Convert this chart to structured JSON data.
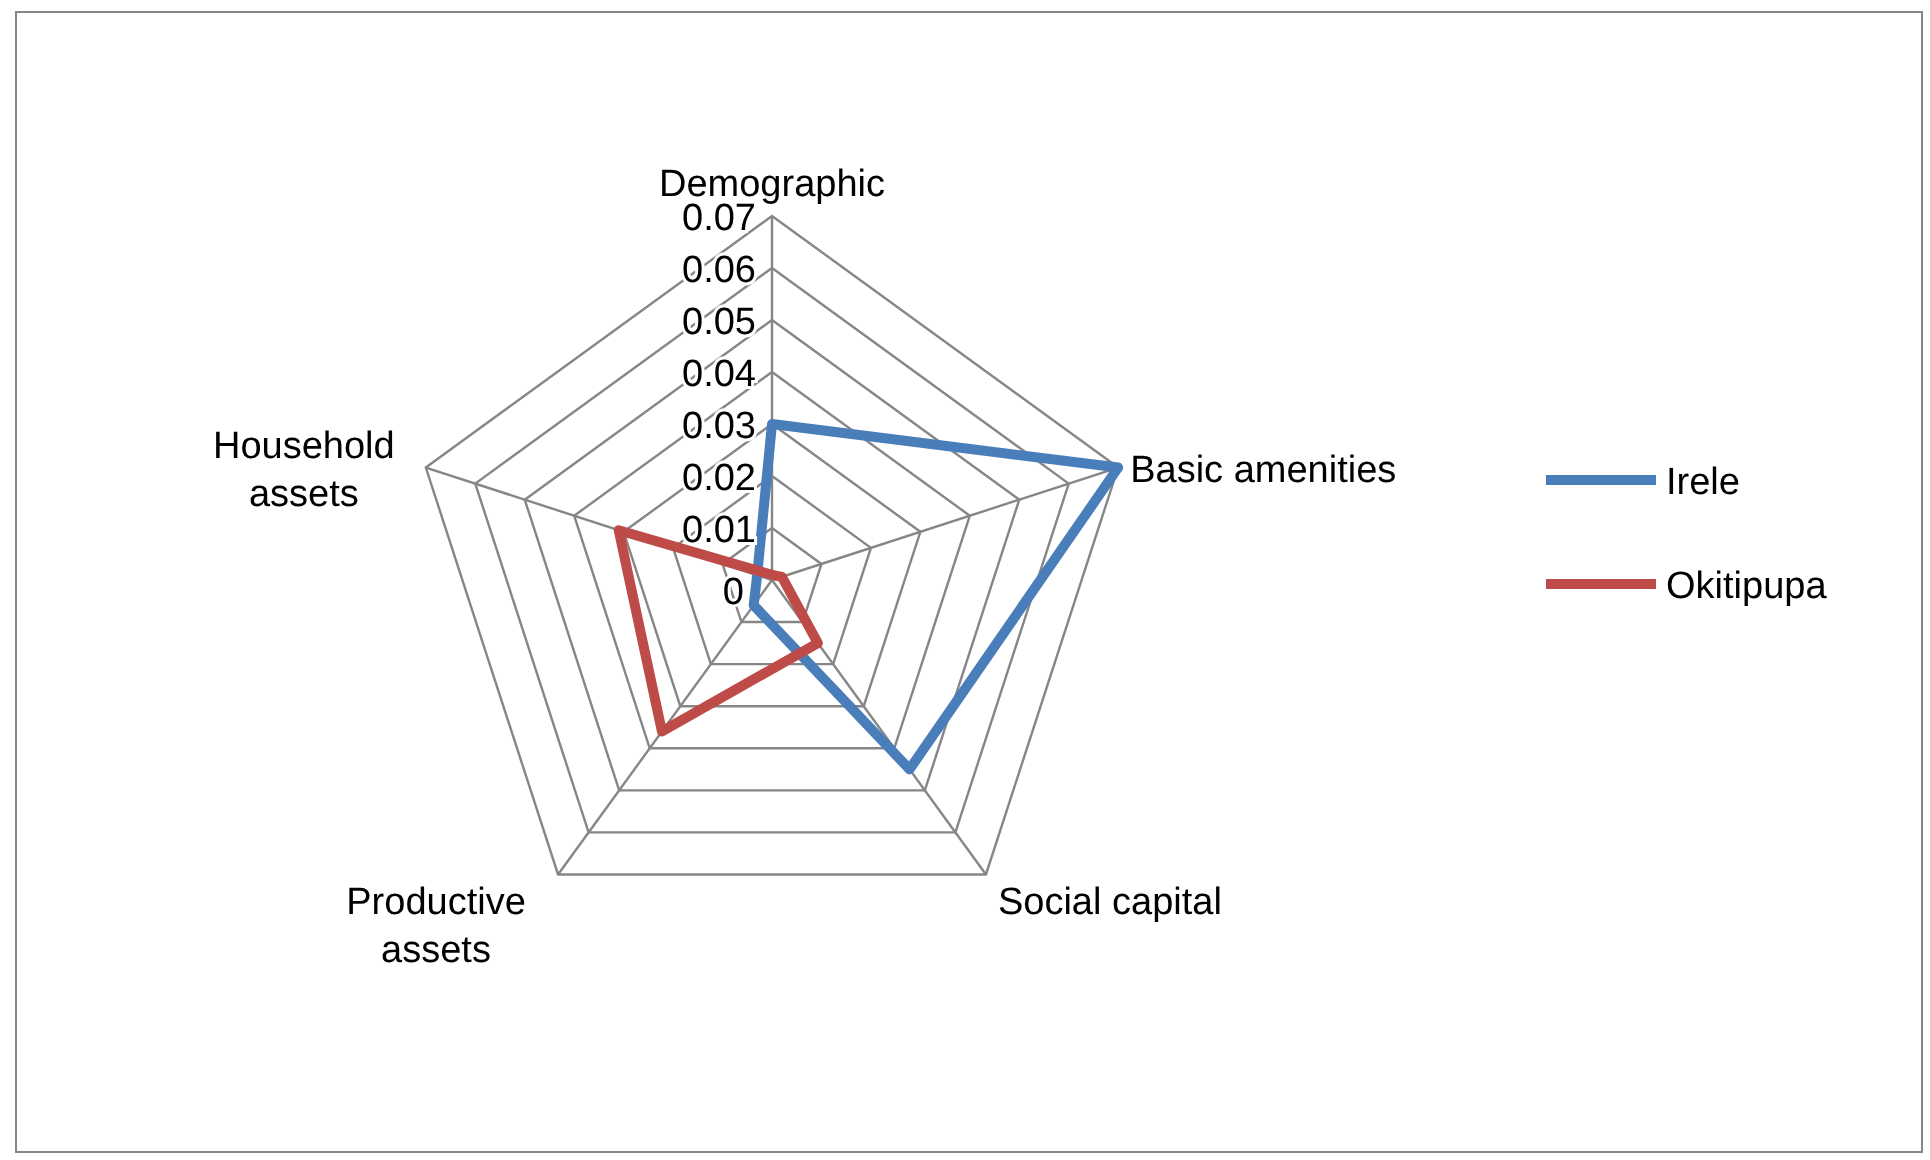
{
  "chart_data": {
    "type": "radar",
    "categories": [
      "Demographic",
      "Basic amenities",
      "Social capital",
      "Productive assets",
      "Household assets"
    ],
    "series": [
      {
        "name": "Irele",
        "color": "#4a7ebb",
        "values": [
          0.03,
          0.07,
          0.045,
          0.006,
          0.003
        ]
      },
      {
        "name": "Okitipupa",
        "color": "#be4b48",
        "values": [
          0.001,
          0.002,
          0.015,
          0.036,
          0.031
        ]
      }
    ],
    "ylim": [
      0,
      0.07
    ],
    "yticks": [
      0,
      0.01,
      0.02,
      0.03,
      0.04,
      0.05,
      0.06,
      0.07
    ],
    "grid": true,
    "legend": "right"
  }
}
